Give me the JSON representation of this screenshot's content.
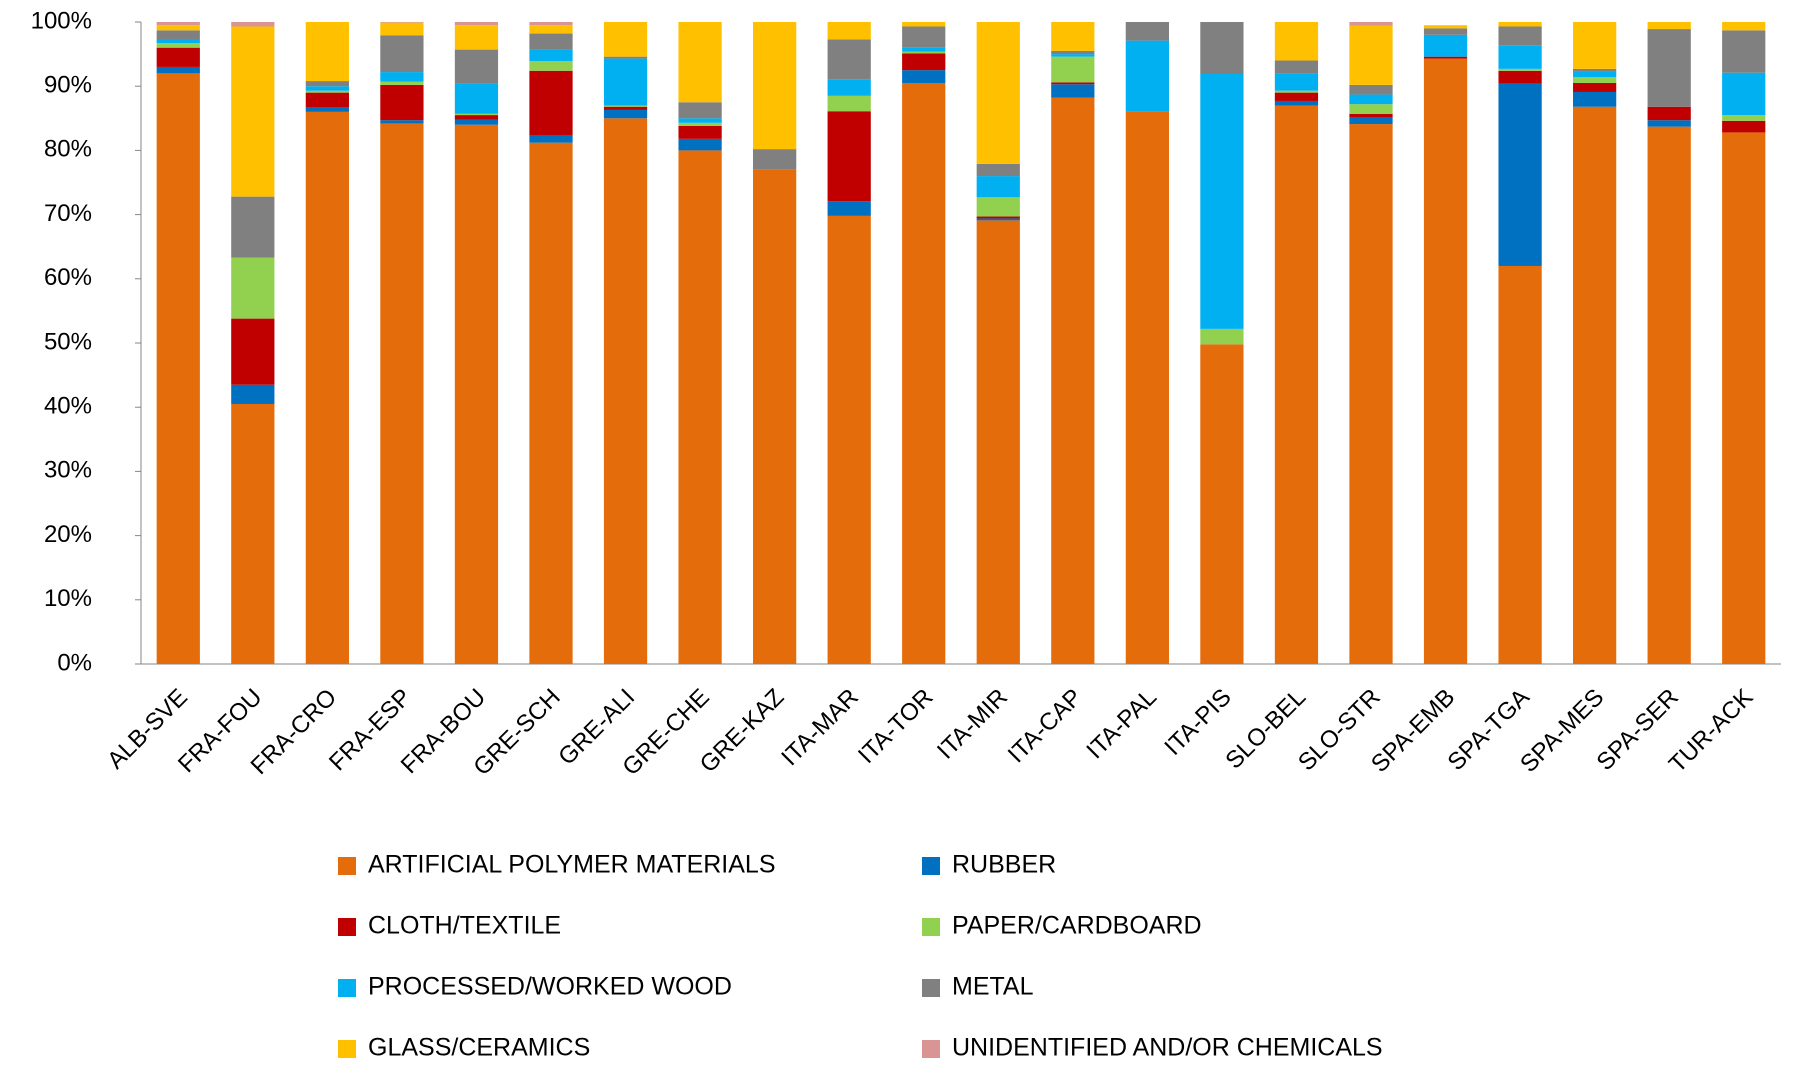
{
  "chart_data": {
    "type": "stacked_bar",
    "categories": [
      "ALB-SVE",
      "FRA-FOU",
      "FRA-CRO",
      "FRA-ESP",
      "FRA-BOU",
      "GRE-SCH",
      "GRE-ALI",
      "GRE-CHE",
      "GRE-KAZ",
      "ITA-MAR",
      "ITA-TOR",
      "ITA-MIR",
      "ITA-CAP",
      "ITA-PAL",
      "ITA-PIS",
      "SLO-BEL",
      "SLO-STR",
      "SPA-EMB",
      "SPA-TGA",
      "SPA-MES",
      "SPA-SER",
      "TUR-ACK"
    ],
    "series": [
      {
        "name": "ARTIFICIAL POLYMER MATERIALS",
        "color": "#e46c0a",
        "values": [
          92,
          40.5,
          86,
          84.2,
          84,
          81.2,
          85,
          80,
          77,
          69.8,
          90.5,
          69.1,
          88.2,
          86,
          49.8,
          87,
          84.1,
          94.3,
          62,
          86.8,
          83.7,
          82.8
        ]
      },
      {
        "name": "RUBBER",
        "color": "#0070c0",
        "values": [
          1,
          3,
          0.7,
          0.5,
          0.8,
          1.2,
          1.3,
          1.8,
          0,
          2.3,
          2,
          0.3,
          2.1,
          0,
          0,
          0.7,
          1,
          0,
          28.4,
          2.3,
          1,
          0
        ]
      },
      {
        "name": "CLOTH/TEXTILE",
        "color": "#c00000",
        "values": [
          3,
          10.3,
          2.3,
          5.5,
          0.7,
          10,
          0.5,
          2,
          0,
          14,
          2.6,
          0.3,
          0.3,
          0,
          0,
          1.3,
          0.6,
          0.3,
          2,
          1.4,
          2.1,
          1.8
        ]
      },
      {
        "name": "PAPER/CARDBOARD",
        "color": "#92d050",
        "values": [
          0.7,
          9.5,
          0.3,
          0.5,
          0.2,
          1.5,
          0.2,
          0.5,
          0,
          2.4,
          0.3,
          3,
          4,
          0,
          2.4,
          0.3,
          1.5,
          0,
          0.3,
          0.9,
          0,
          0.9
        ]
      },
      {
        "name": "PROCESSED/WORKED WOOD",
        "color": "#00b0f0",
        "values": [
          0.5,
          0,
          0.7,
          1.5,
          4.7,
          1.8,
          7.3,
          0.7,
          0,
          2.5,
          0.6,
          3.3,
          0.4,
          11.1,
          39.7,
          2.7,
          1.5,
          3.4,
          3.6,
          0.9,
          0,
          6.6
        ]
      },
      {
        "name": "METAL",
        "color": "#808080",
        "values": [
          1.5,
          9.5,
          0.8,
          5.7,
          5.3,
          2.5,
          0.3,
          2.5,
          3.2,
          6.3,
          3.3,
          1.9,
          0.5,
          2.9,
          8.1,
          2,
          1.5,
          1,
          3,
          0.4,
          12.1,
          6.6
        ]
      },
      {
        "name": "GLASS/CERAMICS",
        "color": "#ffc000",
        "values": [
          0.8,
          26.5,
          9.2,
          2,
          3.8,
          1.3,
          5.4,
          12.5,
          19.8,
          2.7,
          0.7,
          22.1,
          4.5,
          0,
          0,
          6,
          9.2,
          0.5,
          0.7,
          7.3,
          1.1,
          1.3
        ]
      },
      {
        "name": "UNIDENTIFIED AND/OR CHEMICALS",
        "color": "#d99594",
        "values": [
          0.5,
          0.7,
          0,
          0.1,
          0.5,
          0.5,
          0,
          0,
          0,
          0,
          0,
          0,
          0,
          0,
          0,
          0,
          0.6,
          0,
          0,
          0,
          0,
          0
        ]
      }
    ],
    "ylim": [
      0,
      100
    ],
    "yticks": [
      {
        "value": 0,
        "label": "0%"
      },
      {
        "value": 10,
        "label": "10%"
      },
      {
        "value": 20,
        "label": "20%"
      },
      {
        "value": 30,
        "label": "30%"
      },
      {
        "value": 40,
        "label": "40%"
      },
      {
        "value": 50,
        "label": "50%"
      },
      {
        "value": 60,
        "label": "60%"
      },
      {
        "value": 70,
        "label": "70%"
      },
      {
        "value": 80,
        "label": "80%"
      },
      {
        "value": 90,
        "label": "90%"
      },
      {
        "value": 100,
        "label": "100%"
      }
    ],
    "grid": false,
    "legend": "bottom"
  }
}
